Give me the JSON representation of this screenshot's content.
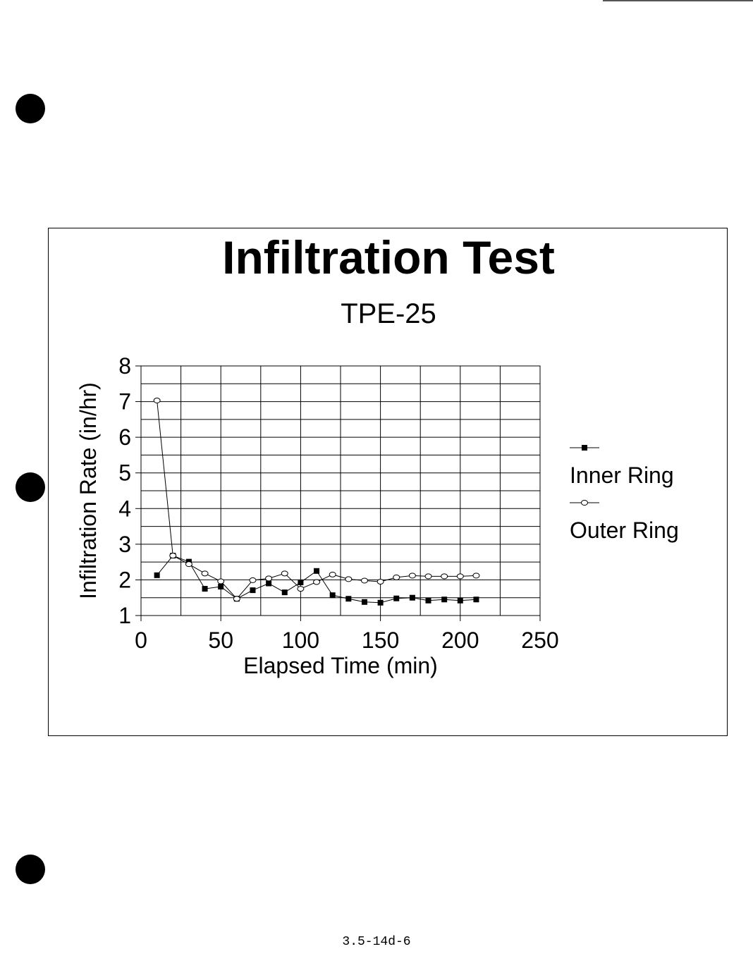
{
  "chart_data": {
    "type": "line",
    "title": "Infiltration Test",
    "subtitle": "TPE-25",
    "xlabel": "Elapsed Time (min)",
    "ylabel": "Infiltration Rate (in/hr)",
    "xlim": [
      0,
      250
    ],
    "ylim": [
      1,
      8
    ],
    "xticks": [
      "0",
      "50",
      "100",
      "150",
      "200",
      "250"
    ],
    "yticks": [
      "1",
      "2",
      "3",
      "4",
      "5",
      "6",
      "7",
      "8"
    ],
    "xtick_values": [
      0,
      50,
      100,
      150,
      200,
      250
    ],
    "ytick_values": [
      1,
      2,
      3,
      4,
      5,
      6,
      7,
      8
    ],
    "x_minor_step": 25,
    "y_minor_step": 0.5,
    "grid": true,
    "legend": "right",
    "series": [
      {
        "name": "Inner Ring",
        "marker": "filled-square",
        "x": [
          10,
          20,
          30,
          40,
          50,
          60,
          70,
          80,
          90,
          100,
          110,
          120,
          130,
          140,
          150,
          160,
          170,
          180,
          190,
          200,
          210
        ],
        "y": [
          2.13,
          2.68,
          2.51,
          1.75,
          1.81,
          1.47,
          1.71,
          1.9,
          1.65,
          1.93,
          2.25,
          1.57,
          1.47,
          1.38,
          1.36,
          1.48,
          1.5,
          1.42,
          1.45,
          1.42,
          1.45
        ]
      },
      {
        "name": "Outer Ring",
        "marker": "open-circle",
        "x": [
          10,
          20,
          30,
          40,
          50,
          60,
          70,
          80,
          90,
          100,
          110,
          120,
          130,
          140,
          150,
          160,
          170,
          180,
          190,
          200,
          210
        ],
        "y": [
          7.03,
          2.68,
          2.44,
          2.18,
          1.96,
          1.47,
          1.99,
          2.04,
          2.18,
          1.75,
          1.94,
          2.15,
          2.02,
          1.98,
          1.95,
          2.07,
          2.12,
          2.1,
          2.1,
          2.1,
          2.12
        ]
      }
    ]
  },
  "footer": {
    "page_number": "3.5-14d-6"
  }
}
